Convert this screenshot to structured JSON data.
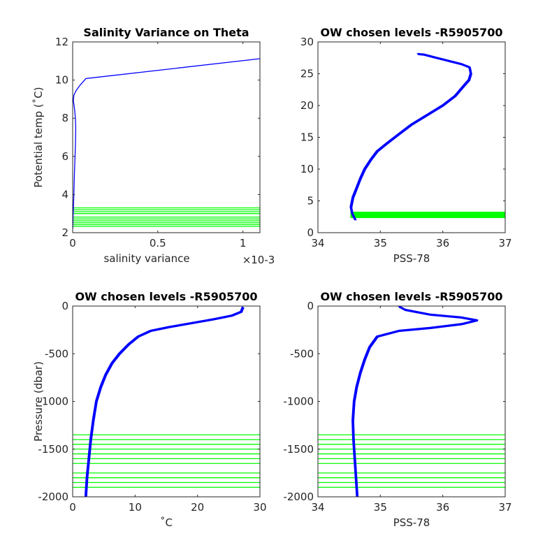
{
  "colors": {
    "profile": "#0000ff",
    "levels": "#00ff00",
    "axes": "#262626",
    "background": "#ffffff"
  },
  "chart_data": [
    {
      "type": "line",
      "title": "Salinity Variance on Theta",
      "xlabel": "salinity variance",
      "xlabel_exponent": "×10-3",
      "ylabel": "Potential temp (˚C)",
      "xlim": [
        0,
        0.0011
      ],
      "ylim": [
        2,
        12
      ],
      "xticks": [
        0,
        0.0005,
        0.001
      ],
      "xtick_labels": [
        "0",
        "0.5",
        "1"
      ],
      "yticks": [
        2,
        4,
        6,
        8,
        10,
        12
      ],
      "ytick_labels": [
        "2",
        "4",
        "6",
        "8",
        "10",
        "12"
      ],
      "series": [
        {
          "color": "#0000ff",
          "x": [
            5e-07,
            1e-06,
            1.5e-06,
            2e-06,
            3e-06,
            4e-06,
            5e-06,
            7e-06,
            1e-05,
            1.4e-05,
            1.7e-05,
            1.8e-05,
            1.6e-05,
            1.2e-05,
            8e-06,
            4e-06,
            7e-06,
            2e-05,
            4.5e-05,
            7.8e-05,
            0.0011
          ],
          "y": [
            2.2,
            2.4,
            2.6,
            2.8,
            3.0,
            3.2,
            3.5,
            4.0,
            5.0,
            6.0,
            6.8,
            7.5,
            8.0,
            8.4,
            8.7,
            8.9,
            9.2,
            9.45,
            9.75,
            10.08,
            11.12
          ]
        }
      ],
      "level_lines": {
        "color": "#00ff00",
        "y": [
          2.33,
          2.42,
          2.52,
          2.62,
          2.72,
          2.82,
          3.0,
          3.1,
          3.2,
          3.3
        ]
      }
    },
    {
      "type": "line",
      "title": "OW chosen levels -R5905700",
      "xlabel": "PSS-78",
      "ylabel": "",
      "xlim": [
        34,
        37
      ],
      "ylim": [
        0,
        30
      ],
      "xticks": [
        34,
        35,
        36,
        37
      ],
      "xtick_labels": [
        "34",
        "35",
        "36",
        "37"
      ],
      "yticks": [
        0,
        5,
        10,
        15,
        20,
        25,
        30
      ],
      "ytick_labels": [
        "0",
        "5",
        "10",
        "15",
        "20",
        "25",
        "30"
      ],
      "series": [
        {
          "color": "#0000ff",
          "x": [
            34.6,
            34.55,
            34.53,
            34.56,
            34.62,
            34.68,
            34.75,
            34.85,
            34.95,
            35.1,
            35.3,
            35.5,
            35.75,
            36.0,
            36.2,
            36.33,
            36.42,
            36.45,
            36.43,
            36.3,
            36.1,
            35.9,
            35.7,
            35.6
          ],
          "y": [
            2.0,
            3.0,
            4.0,
            5.5,
            7.0,
            8.5,
            10.0,
            11.5,
            12.8,
            14.0,
            15.5,
            17.0,
            18.5,
            20.0,
            21.5,
            23.0,
            24.0,
            25.0,
            26.0,
            26.5,
            27.0,
            27.5,
            28.0,
            28.1
          ]
        }
      ],
      "level_band": {
        "color": "#00ff00",
        "x": [
          34.52,
          37.0
        ],
        "y": [
          2.3,
          3.3
        ]
      }
    },
    {
      "type": "line",
      "title": "OW chosen levels -R5905700",
      "xlabel": "˚C",
      "ylabel": "Pressure (dbar)",
      "xlim": [
        0,
        30
      ],
      "ylim": [
        -2000,
        0
      ],
      "xticks": [
        0,
        10,
        20,
        30
      ],
      "xtick_labels": [
        "0",
        "10",
        "20",
        "30"
      ],
      "yticks": [
        -2000,
        -1500,
        -1000,
        -500,
        0
      ],
      "ytick_labels": [
        "-2000",
        "-1500",
        "-1000",
        "-500",
        "0"
      ],
      "series": [
        {
          "color": "#0000ff",
          "x": [
            2.1,
            2.3,
            2.6,
            2.9,
            3.3,
            3.8,
            4.5,
            5.3,
            6.3,
            7.5,
            9.0,
            10.5,
            12.5,
            15.5,
            19.0,
            22.5,
            25.5,
            27.0,
            27.3
          ],
          "y": [
            -2000,
            -1800,
            -1600,
            -1400,
            -1200,
            -1000,
            -850,
            -720,
            -600,
            -500,
            -400,
            -320,
            -260,
            -220,
            -180,
            -140,
            -100,
            -60,
            -10
          ]
        }
      ],
      "level_lines": {
        "color": "#00ff00",
        "y": [
          -1350,
          -1400,
          -1450,
          -1500,
          -1550,
          -1600,
          -1650,
          -1750,
          -1800,
          -1850,
          -1900
        ]
      }
    },
    {
      "type": "line",
      "title": "OW chosen levels -R5905700",
      "xlabel": "PSS-78",
      "ylabel": "",
      "xlim": [
        34,
        37
      ],
      "ylim": [
        -2000,
        0
      ],
      "xticks": [
        34,
        35,
        36,
        37
      ],
      "xtick_labels": [
        "34",
        "35",
        "36",
        "37"
      ],
      "yticks": [
        -2000,
        -1500,
        -1000,
        -500,
        0
      ],
      "ytick_labels": [
        "-2000",
        "-1500",
        "-1000",
        "-500",
        "0"
      ],
      "series": [
        {
          "color": "#0000ff",
          "x": [
            34.63,
            34.61,
            34.59,
            34.57,
            34.56,
            34.58,
            34.62,
            34.68,
            34.75,
            34.83,
            34.95,
            35.3,
            35.8,
            36.3,
            36.55,
            36.3,
            35.8,
            35.4,
            35.3
          ],
          "y": [
            -2000,
            -1800,
            -1600,
            -1400,
            -1200,
            -1000,
            -850,
            -700,
            -560,
            -430,
            -320,
            -260,
            -230,
            -190,
            -150,
            -120,
            -90,
            -40,
            -5
          ]
        }
      ],
      "level_lines": {
        "color": "#00ff00",
        "y": [
          -1350,
          -1400,
          -1450,
          -1500,
          -1550,
          -1600,
          -1650,
          -1750,
          -1800,
          -1850,
          -1900
        ]
      }
    }
  ]
}
